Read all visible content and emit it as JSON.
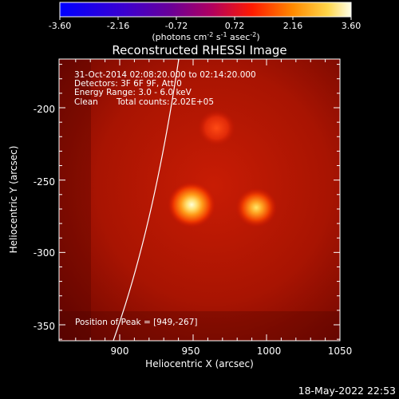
{
  "colorbar": {
    "ticks": [
      "-3.60",
      "-2.16",
      "-0.72",
      "0.72",
      "2.16",
      "3.60"
    ],
    "unit_text": "(photons cm",
    "unit_sup1": "-2",
    "unit_mid": " s",
    "unit_sup2": "-1",
    "unit_end": " asec",
    "unit_sup3": "-2",
    "unit_close": ")"
  },
  "title": "Reconstructed RHESSI Image",
  "info": {
    "line1": "31-Oct-2014 02:08:20.000 to 02:14:20.000",
    "line2": "Detectors: 3F 6F 9F, Att 0",
    "line3": "Energy Range: 3.0 - 6.0 keV",
    "line4_a": "Clean",
    "line4_b": "Total counts: 2.02E+05"
  },
  "peak_text": "Position of Peak = [949,-267]",
  "axes": {
    "xlabel": "Heliocentric X (arcsec)",
    "ylabel": "Heliocentric Y (arcsec)",
    "xticks": [
      "900",
      "950",
      "1000",
      "1050"
    ],
    "yticks": [
      "-200",
      "-250",
      "-300",
      "-350"
    ]
  },
  "timestamp": "18-May-2022 22:53",
  "sources": [
    {
      "x": 949,
      "y": -267,
      "strength": 1.0
    },
    {
      "x": 993,
      "y": -269,
      "strength": 0.8
    },
    {
      "x": 966,
      "y": -214,
      "strength": 0.35
    }
  ],
  "colors": {
    "background": "#000000",
    "text": "#ffffff"
  }
}
